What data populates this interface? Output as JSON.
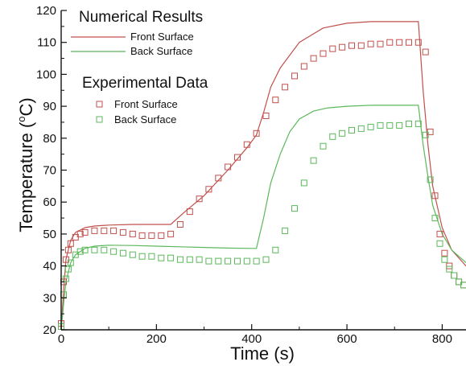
{
  "chart_data": {
    "type": "line",
    "title": "",
    "xlabel": "Time (s)",
    "ylabel_main": "Temperature (",
    "ylabel_unit": "o",
    "ylabel_end": "C)",
    "xlim": [
      0,
      850
    ],
    "ylim": [
      20,
      120
    ],
    "xticks": [
      0,
      200,
      400,
      600,
      800
    ],
    "yticks": [
      20,
      30,
      40,
      50,
      60,
      70,
      80,
      90,
      100,
      110,
      120
    ],
    "grid": false,
    "legend": {
      "placement": "top-left",
      "numerical_heading": "Numerical Results",
      "experimental_heading": "Experimental Data",
      "numerical_items": [
        "Front Surface",
        "Back Surface"
      ],
      "experimental_items": [
        "Front Surface",
        "Back Surface"
      ]
    },
    "colors": {
      "front": "#c0504d",
      "back": "#5cb85c",
      "axis": "#111111"
    },
    "series": [
      {
        "name": "Front Surface",
        "kind": "numerical",
        "x": [
          0,
          5,
          10,
          20,
          30,
          50,
          70,
          100,
          150,
          200,
          230,
          260,
          300,
          350,
          390,
          410,
          425,
          440,
          460,
          500,
          550,
          600,
          650,
          700,
          720,
          750,
          760,
          770,
          780,
          800,
          820,
          850
        ],
        "y": [
          20,
          32,
          42,
          48,
          50.5,
          52,
          52.5,
          52.8,
          53,
          53,
          53,
          57,
          62,
          70,
          77,
          81,
          88,
          96,
          102,
          110,
          114.5,
          116,
          116.5,
          116.5,
          116.5,
          116.5,
          95,
          78,
          65,
          52,
          45,
          40
        ]
      },
      {
        "name": "Back Surface",
        "kind": "numerical",
        "x": [
          0,
          5,
          10,
          20,
          30,
          50,
          70,
          100,
          150,
          200,
          250,
          300,
          350,
          400,
          410,
          425,
          440,
          460,
          480,
          500,
          530,
          560,
          600,
          650,
          700,
          750,
          760,
          770,
          780,
          800,
          820,
          850
        ],
        "y": [
          20,
          28,
          35,
          41,
          43.5,
          45.5,
          46.2,
          46.5,
          46.4,
          46.2,
          46,
          45.8,
          45.6,
          45.5,
          45.5,
          55,
          66,
          75,
          82,
          86,
          88.5,
          89.5,
          90,
          90.3,
          90.3,
          90.3,
          78,
          68,
          59,
          50,
          45,
          41
        ]
      },
      {
        "name": "Front Surface",
        "kind": "experimental",
        "x": [
          0,
          5,
          10,
          15,
          20,
          30,
          40,
          50,
          70,
          90,
          110,
          130,
          150,
          170,
          190,
          210,
          230,
          250,
          270,
          290,
          310,
          330,
          350,
          370,
          390,
          410,
          430,
          450,
          470,
          490,
          510,
          530,
          550,
          570,
          590,
          610,
          630,
          650,
          670,
          690,
          710,
          730,
          750,
          765,
          775,
          785,
          795,
          805,
          815,
          825,
          835,
          845
        ],
        "y": [
          22,
          35,
          42,
          45,
          47,
          49,
          50,
          50.5,
          51,
          51,
          51,
          50.5,
          50,
          49.5,
          49.5,
          49.5,
          50,
          53,
          57,
          61,
          64,
          67.5,
          71,
          74,
          78,
          81.5,
          87,
          92,
          96,
          99.5,
          102.5,
          105,
          106.5,
          108,
          108.5,
          109,
          109,
          109.5,
          109.5,
          110,
          110,
          110,
          110,
          107,
          82,
          62,
          50,
          44,
          40,
          37,
          35,
          34
        ]
      },
      {
        "name": "Back Surface",
        "kind": "experimental",
        "x": [
          0,
          5,
          10,
          15,
          20,
          30,
          40,
          50,
          70,
          90,
          110,
          130,
          150,
          170,
          190,
          210,
          230,
          250,
          270,
          290,
          310,
          330,
          350,
          370,
          390,
          410,
          430,
          450,
          470,
          490,
          510,
          530,
          550,
          570,
          590,
          610,
          630,
          650,
          670,
          690,
          710,
          730,
          750,
          765,
          775,
          785,
          795,
          805,
          815,
          825,
          835,
          845
        ],
        "y": [
          21,
          31,
          36,
          39,
          41,
          43.5,
          44.5,
          45,
          45,
          45,
          44.5,
          44,
          43.5,
          43,
          43,
          42.5,
          42.5,
          42,
          42,
          42,
          41.5,
          41.5,
          41.5,
          41.5,
          41.5,
          41.5,
          42,
          45,
          51,
          58,
          66,
          73,
          77.5,
          80.5,
          81.5,
          82.5,
          83,
          83.5,
          84,
          84,
          84,
          84.5,
          84.5,
          81,
          67,
          55,
          47,
          42,
          39,
          37,
          35,
          34
        ]
      }
    ]
  }
}
